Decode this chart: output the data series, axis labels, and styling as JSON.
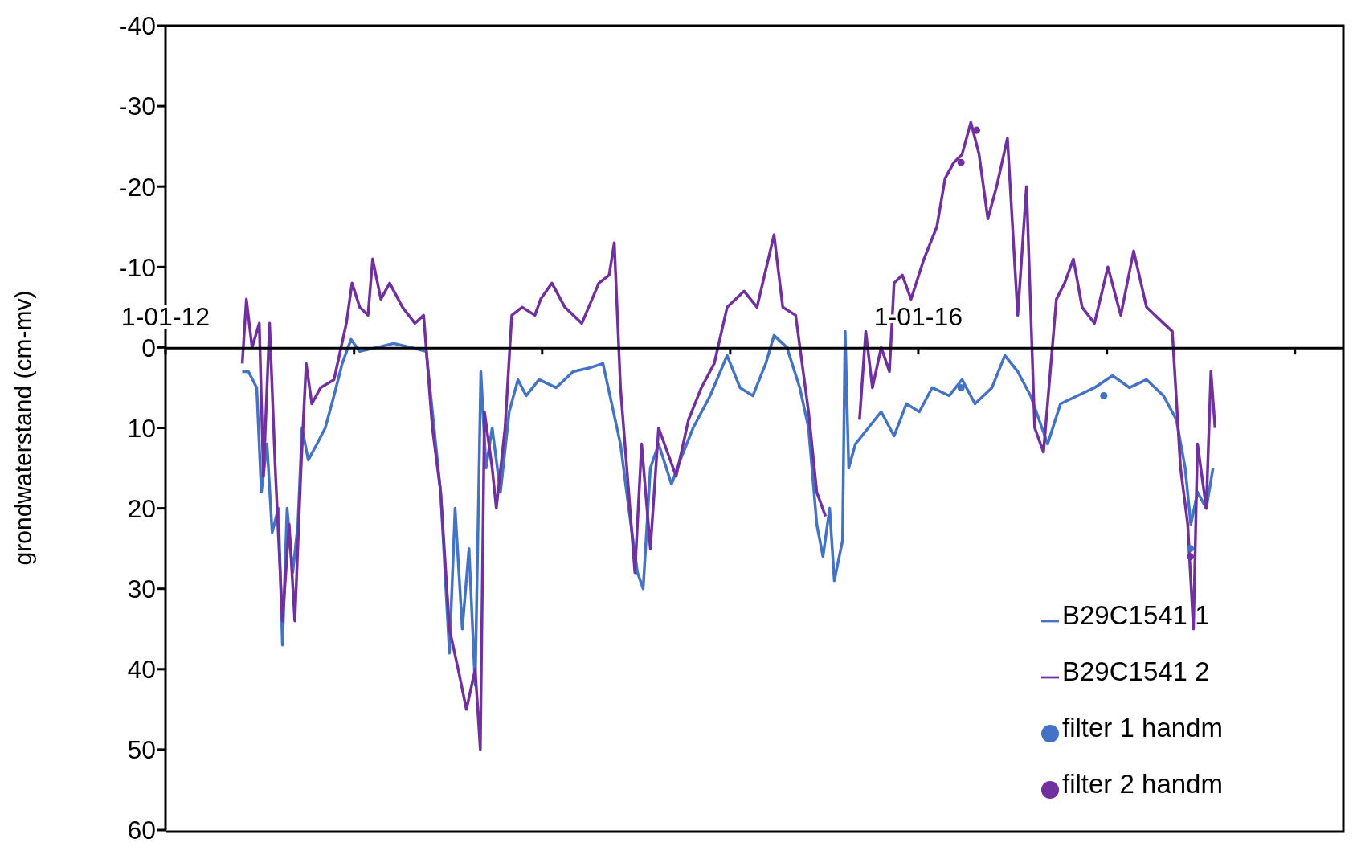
{
  "chart_data": {
    "type": "line",
    "ylabel": "grondwaterstand (cm-mv)",
    "xlim": [
      "2012-01-01",
      "2018-04-05"
    ],
    "xticks": [
      {
        "value": "2012-01-01",
        "label": "1-01-12"
      },
      {
        "value": "2013-01-01",
        "label": null
      },
      {
        "value": "2014-01-01",
        "label": null
      },
      {
        "value": "2015-01-01",
        "label": null
      },
      {
        "value": "2016-01-01",
        "label": "1-01-16"
      },
      {
        "value": "2017-01-01",
        "label": null
      },
      {
        "value": "2018-01-01",
        "label": null
      }
    ],
    "ylim": [
      60,
      -40
    ],
    "yticks": [
      -40,
      -30,
      -20,
      -10,
      0,
      10,
      20,
      30,
      40,
      50,
      60
    ],
    "grid": false,
    "legend": "bottom right",
    "line_style": "solid",
    "series": [
      {
        "name": "B29C1541 1",
        "type": "line",
        "marker": "none",
        "color": "#4472c4",
        "x": [
          "2012-05-29",
          "2012-06-10",
          "2012-06-26",
          "2012-07-05",
          "2012-07-16",
          "2012-07-26",
          "2012-08-07",
          "2012-08-15",
          "2012-08-24",
          "2012-09-04",
          "2012-09-14",
          "2012-09-22",
          "2012-10-04",
          "2012-10-21",
          "2012-11-06",
          "2012-11-23",
          "2012-12-09",
          "2012-12-26",
          "2013-01-12",
          "2013-02-14",
          "2013-03-19",
          "2013-04-21",
          "2013-05-21",
          "2013-06-02",
          "2013-06-18",
          "2013-07-05",
          "2013-07-16",
          "2013-07-30",
          "2013-08-12",
          "2013-08-24",
          "2013-09-04",
          "2013-09-14",
          "2013-09-26",
          "2013-10-12",
          "2013-10-29",
          "2013-11-15",
          "2013-12-01",
          "2013-12-26",
          "2014-01-28",
          "2014-03-02",
          "2014-04-05",
          "2014-04-29",
          "2014-05-16",
          "2014-06-02",
          "2014-06-18",
          "2014-07-05",
          "2014-07-16",
          "2014-07-30",
          "2014-08-15",
          "2014-09-09",
          "2014-09-26",
          "2014-10-21",
          "2014-11-23",
          "2014-12-26",
          "2015-01-20",
          "2015-02-14",
          "2015-03-11",
          "2015-03-27",
          "2015-04-21",
          "2015-05-16",
          "2015-06-02",
          "2015-06-18",
          "2015-06-30",
          "2015-07-13",
          "2015-07-22",
          "2015-08-07",
          "2015-08-12",
          "2015-08-19",
          "2015-09-01",
          "2015-09-26",
          "2015-10-21",
          "2015-11-15",
          "2015-12-09",
          "2016-01-03",
          "2016-01-28",
          "2016-03-01",
          "2016-03-26",
          "2016-04-20",
          "2016-05-23",
          "2016-06-17",
          "2016-07-12",
          "2016-08-06",
          "2016-09-08",
          "2016-10-03",
          "2016-11-05",
          "2016-12-08",
          "2017-01-12",
          "2017-02-14",
          "2017-03-19",
          "2017-04-21",
          "2017-05-16",
          "2017-06-02",
          "2017-06-13",
          "2017-06-26",
          "2017-07-13",
          "2017-07-26"
        ],
        "values": [
          3,
          3,
          5,
          18,
          12,
          23,
          20,
          37,
          20,
          28,
          22,
          10,
          14,
          12,
          10,
          6,
          2,
          -1,
          0.5,
          0,
          -0.5,
          0,
          0.5,
          8,
          18,
          38,
          20,
          35,
          25,
          42,
          3,
          15,
          10,
          18,
          8,
          4,
          6,
          4,
          5,
          3,
          2.5,
          2,
          7,
          12,
          20,
          28,
          30,
          15,
          12,
          17,
          14,
          10,
          6,
          1,
          5,
          6,
          2,
          -1.5,
          0,
          5,
          10,
          22,
          26,
          20,
          29,
          24,
          -2,
          15,
          12,
          10,
          8,
          11,
          7,
          8,
          5,
          6,
          4,
          7,
          5,
          1,
          3,
          6,
          12,
          7,
          6,
          5,
          3.5,
          5,
          4,
          6,
          9,
          15,
          22,
          18,
          20,
          15
        ]
      },
      {
        "name": "B29C1541 2",
        "type": "line",
        "marker": "none",
        "color": "#7030a0",
        "x": [
          "2012-05-29",
          "2012-06-06",
          "2012-06-17",
          "2012-07-01",
          "2012-07-09",
          "2012-07-21",
          "2012-08-01",
          "2012-08-15",
          "2012-08-28",
          "2012-09-08",
          "2012-09-20",
          "2012-09-30",
          "2012-10-11",
          "2012-10-28",
          "2012-11-23",
          "2012-12-17",
          "2012-12-28",
          "2013-01-12",
          "2013-01-28",
          "2013-02-06",
          "2013-02-22",
          "2013-03-11",
          "2013-04-05",
          "2013-04-29",
          "2013-05-16",
          "2013-06-02",
          "2013-06-18",
          "2013-07-05",
          "2013-07-22",
          "2013-08-07",
          "2013-08-24",
          "2013-09-03",
          "2013-09-11",
          "2013-09-26",
          "2013-10-04",
          "2013-10-21",
          "2013-11-03",
          "2013-11-23",
          "2013-12-18",
          "2013-12-29",
          "2014-01-20",
          "2014-02-14",
          "2014-03-19",
          "2014-04-21",
          "2014-05-11",
          "2014-05-21",
          "2014-06-02",
          "2014-06-18",
          "2014-06-30",
          "2014-07-13",
          "2014-07-30",
          "2014-08-15",
          "2014-09-18",
          "2014-10-12",
          "2014-11-06",
          "2014-12-01",
          "2014-12-26",
          "2015-01-28",
          "2015-02-22",
          "2015-03-27",
          "2015-04-13",
          "2015-05-08",
          "2015-06-02",
          "2015-06-18",
          "2015-07-05",
          "2015-08-07",
          "2015-09-09",
          "2015-09-21",
          "2015-10-04",
          "2015-10-21",
          "2015-11-06",
          "2015-11-15",
          "2015-12-01",
          "2015-12-18",
          "2016-01-12",
          "2016-02-06",
          "2016-02-22",
          "2016-03-10",
          "2016-03-26",
          "2016-04-12",
          "2016-04-28",
          "2016-05-15",
          "2016-06-01",
          "2016-06-22",
          "2016-07-12",
          "2016-07-29",
          "2016-08-14",
          "2016-08-31",
          "2016-09-25",
          "2016-10-11",
          "2016-10-28",
          "2016-11-14",
          "2016-12-08",
          "2017-01-03",
          "2017-01-28",
          "2017-02-22",
          "2017-03-19",
          "2017-04-21",
          "2017-05-08",
          "2017-05-24",
          "2017-06-07",
          "2017-06-18",
          "2017-06-26",
          "2017-07-13",
          "2017-07-22",
          "2017-07-30"
        ],
        "values": [
          2,
          -6,
          0,
          -3,
          16,
          -3,
          15,
          34,
          22,
          34,
          15,
          2,
          7,
          5,
          4,
          -3,
          -8,
          -5,
          -4,
          -11,
          -6,
          -8,
          -5,
          -3,
          -4,
          10,
          18,
          35,
          40,
          45,
          40,
          50,
          8,
          15,
          20,
          10,
          -4,
          -5,
          -4,
          -6,
          -8,
          -5,
          -3,
          -8,
          -9,
          -13,
          5,
          18,
          28,
          12,
          25,
          10,
          16,
          9,
          5,
          2,
          -5,
          -7,
          -5,
          -14,
          -5,
          -4,
          8,
          18,
          21,
          null,
          9,
          -2,
          5,
          0,
          3,
          -8,
          -9,
          -6,
          -11,
          -15,
          -21,
          -23,
          -24,
          -28,
          -24,
          -16,
          -20,
          -26,
          -4,
          -20,
          10,
          13,
          -6,
          -8,
          -11,
          -5,
          -3,
          -10,
          -4,
          -12,
          -5,
          -3,
          -2,
          15,
          22,
          35,
          12,
          20,
          3,
          10
        ]
      },
      {
        "name": "filter 1 handm",
        "type": "scatter",
        "marker": "circle",
        "color": "#4472c4",
        "x": [
          "2016-03-24",
          "2016-12-26",
          "2017-06-12"
        ],
        "values": [
          5,
          6,
          25
        ]
      },
      {
        "name": "filter 2 handm",
        "type": "scatter",
        "marker": "circle",
        "color": "#7030a0",
        "x": [
          "2016-03-24",
          "2016-04-23",
          "2017-06-12"
        ],
        "values": [
          -23,
          -27,
          26
        ]
      }
    ]
  }
}
